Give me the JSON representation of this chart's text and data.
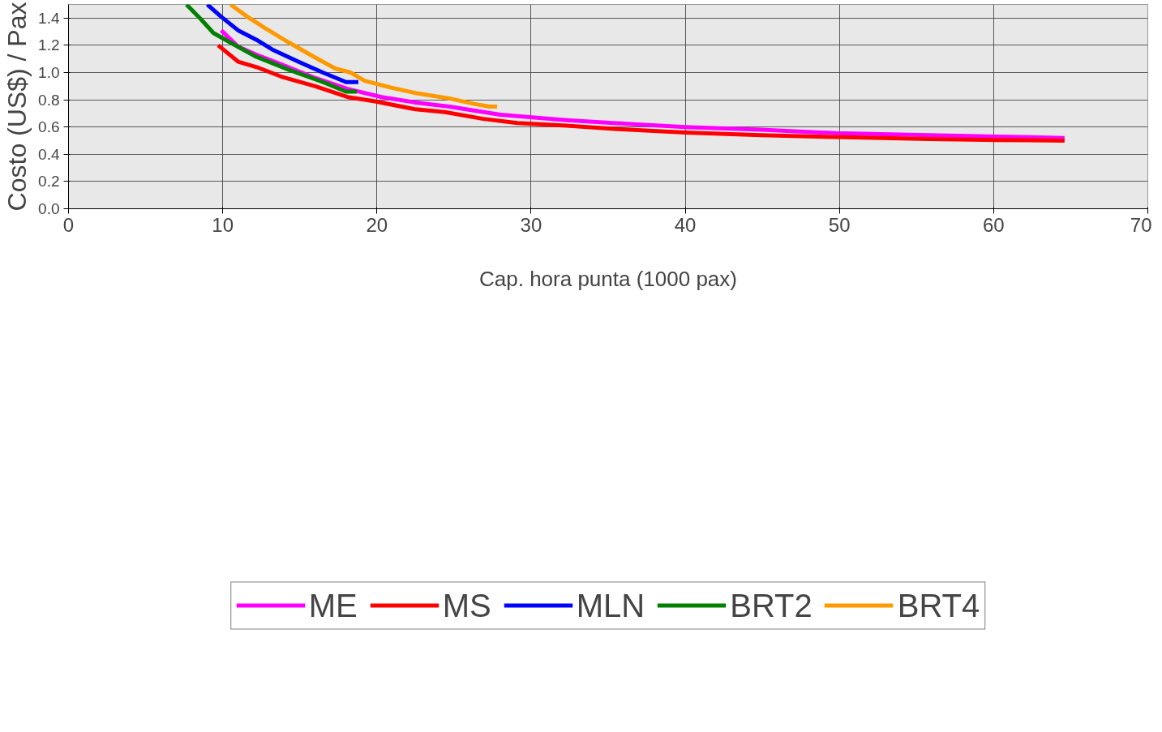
{
  "chart_data": {
    "type": "line",
    "xlabel": "Cap. hora punta (1000 pax)",
    "ylabel": "Costo (US$) / Pax",
    "xlim": [
      0,
      70
    ],
    "xticks": [
      0,
      10,
      20,
      30,
      40,
      50,
      60,
      70
    ],
    "ylim": [
      0,
      1.5
    ],
    "yticks": [
      {
        "value": 0,
        "label": "0.0"
      },
      0.2,
      0.4,
      0.6,
      0.8,
      {
        "value": 1,
        "label": "1.0"
      },
      1.2,
      1.4
    ],
    "grid": true,
    "legend": "bottom",
    "line_style": "solid",
    "marker": "none",
    "series": [
      {
        "name": "ME",
        "color": "#ff00ff",
        "x": [
          9.9,
          11.0,
          12.2,
          13.8,
          16.0,
          18.1,
          20.3,
          22.5,
          24.7,
          28.0,
          32.3,
          36.7,
          40.0,
          44.9,
          49.8,
          55.8,
          60.2,
          64.6
        ],
        "values": [
          1.31,
          1.19,
          1.13,
          1.06,
          0.96,
          0.88,
          0.82,
          0.78,
          0.75,
          0.69,
          0.65,
          0.62,
          0.6,
          0.58,
          0.555,
          0.54,
          0.53,
          0.52
        ]
      },
      {
        "name": "MS",
        "color": "#ff0000",
        "x": [
          9.7,
          11.0,
          12.2,
          13.8,
          16.0,
          18.1,
          19.8,
          22.5,
          24.4,
          26.9,
          29.1,
          32.3,
          35.6,
          40.0,
          44.9,
          50.4,
          55.8,
          60.2,
          64.6
        ],
        "values": [
          1.2,
          1.08,
          1.04,
          0.97,
          0.9,
          0.82,
          0.79,
          0.73,
          0.71,
          0.66,
          0.63,
          0.61,
          0.585,
          0.56,
          0.54,
          0.525,
          0.512,
          0.505,
          0.5
        ]
      },
      {
        "name": "MLN",
        "color": "#0000ff",
        "x": [
          9.0,
          9.9,
          11.0,
          12.2,
          13.2,
          14.9,
          16.5,
          18.0,
          18.8
        ],
        "values": [
          1.5,
          1.41,
          1.31,
          1.24,
          1.17,
          1.08,
          1.0,
          0.93,
          0.93
        ]
      },
      {
        "name": "BRT2",
        "color": "#008000",
        "x": [
          7.65,
          8.6,
          9.4,
          10.5,
          12.1,
          14.3,
          16.5,
          18.0,
          18.7
        ],
        "values": [
          1.5,
          1.39,
          1.29,
          1.22,
          1.12,
          1.02,
          0.93,
          0.86,
          0.86
        ]
      },
      {
        "name": "BRT4",
        "color": "#ff9900",
        "x": [
          10.5,
          11.6,
          12.7,
          14.3,
          16.0,
          17.3,
          18.3,
          19.2,
          20.9,
          22.5,
          24.7,
          26.3,
          27.3,
          27.8
        ],
        "values": [
          1.5,
          1.41,
          1.33,
          1.22,
          1.11,
          1.03,
          1.0,
          0.94,
          0.89,
          0.85,
          0.81,
          0.77,
          0.75,
          0.75
        ]
      }
    ]
  }
}
